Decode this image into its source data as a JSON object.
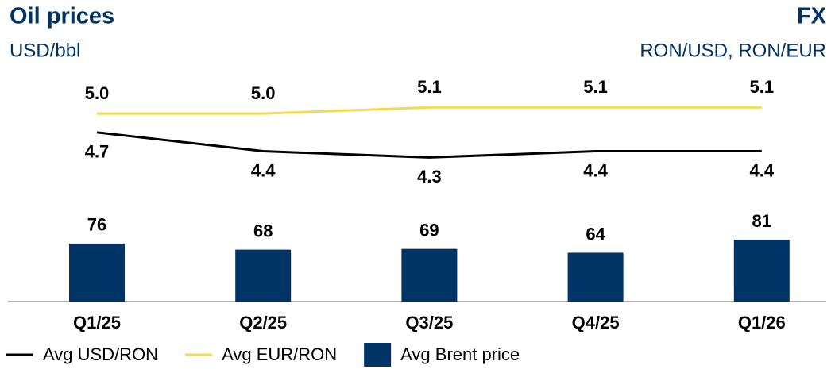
{
  "chart_data": {
    "type": "combo",
    "title": "Oil prices",
    "subtitle": "USD/bbl",
    "title_right": "FX",
    "subtitle_right": "RON/USD, RON/EUR",
    "categories": [
      "Q1/25",
      "Q2/25",
      "Q3/25",
      "Q4/25",
      "Q1/26"
    ],
    "ylim": [
      0,
      312
    ],
    "y2lim": [
      2,
      5.8
    ],
    "legend": "bottom-left",
    "series": [
      {
        "name": "Avg USD/RON",
        "type": "line",
        "axis": "y2",
        "color": "#000000",
        "values": [
          4.7,
          4.4,
          4.3,
          4.4,
          4.4
        ],
        "label_position": "below"
      },
      {
        "name": "Avg EUR/RON",
        "type": "line",
        "axis": "y2",
        "color": "#f7d94c",
        "values": [
          5.0,
          5.0,
          5.1,
          5.1,
          5.1
        ],
        "value_labels": [
          "5.0",
          "5.0",
          "5.1",
          "5.1",
          "5.1"
        ],
        "label_position": "above"
      },
      {
        "name": "Avg Brent price",
        "type": "bar",
        "color": "#003366",
        "values": [
          76,
          68,
          69,
          64,
          81
        ],
        "label_position": "above"
      }
    ]
  }
}
